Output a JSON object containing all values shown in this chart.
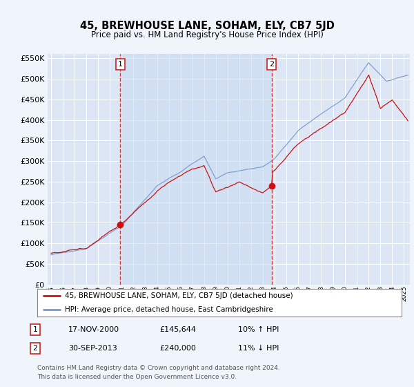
{
  "title": "45, BREWHOUSE LANE, SOHAM, ELY, CB7 5JD",
  "subtitle": "Price paid vs. HM Land Registry's House Price Index (HPI)",
  "background_color": "#f0f4fb",
  "plot_bg_color": "#dce6f5",
  "grid_color": "#c8d4e8",
  "red_line_color": "#cc1111",
  "blue_line_color": "#7799cc",
  "shade_color": "#dce8f8",
  "marker1_x": 2000.88,
  "marker1_y": 145644,
  "marker2_x": 2013.75,
  "marker2_y": 240000,
  "legend_line1": "45, BREWHOUSE LANE, SOHAM, ELY, CB7 5JD (detached house)",
  "legend_line2": "HPI: Average price, detached house, East Cambridgeshire",
  "annotation1_date": "17-NOV-2000",
  "annotation1_price": "£145,644",
  "annotation1_hpi": "10% ↑ HPI",
  "annotation2_date": "30-SEP-2013",
  "annotation2_price": "£240,000",
  "annotation2_hpi": "11% ↓ HPI",
  "footer": "Contains HM Land Registry data © Crown copyright and database right 2024.\nThis data is licensed under the Open Government Licence v3.0.",
  "ylim": [
    0,
    560000
  ],
  "yticks": [
    0,
    50000,
    100000,
    150000,
    200000,
    250000,
    300000,
    350000,
    400000,
    450000,
    500000,
    550000
  ],
  "xlim_start": 1994.7,
  "xlim_end": 2025.5
}
